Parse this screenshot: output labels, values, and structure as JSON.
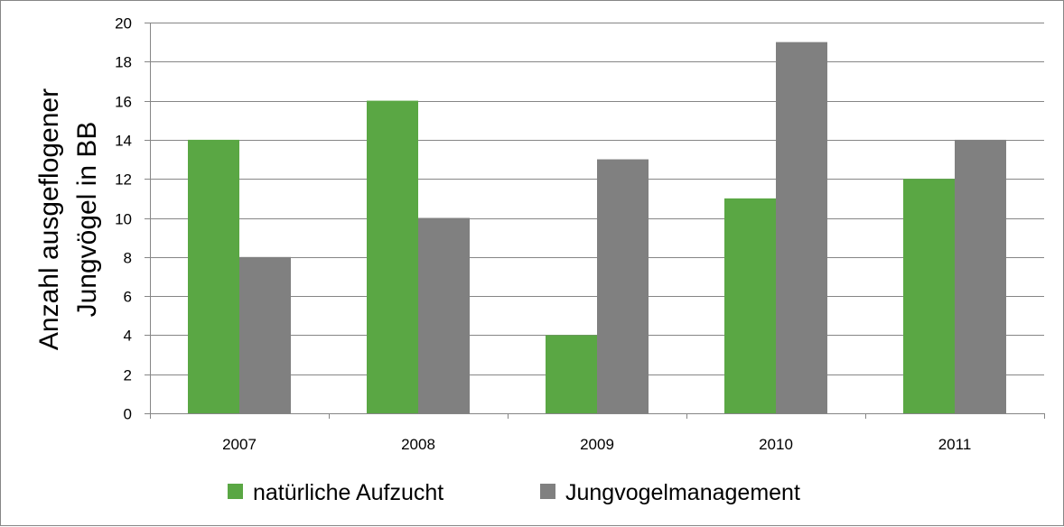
{
  "chart_data": {
    "type": "bar",
    "title": "",
    "xlabel": "",
    "ylabel_lines": [
      "Anzahl ausgeflogener",
      "Jungvögel in BB"
    ],
    "categories": [
      "2007",
      "2008",
      "2009",
      "2010",
      "2011"
    ],
    "series": [
      {
        "name": "natürliche Aufzucht",
        "color": "#5aa744",
        "values": [
          14,
          16,
          4,
          11,
          12
        ]
      },
      {
        "name": "Jungvogelmanagement",
        "color": "#808080",
        "values": [
          8,
          10,
          13,
          19,
          14
        ]
      }
    ],
    "ylim": [
      0,
      20
    ],
    "yticks": [
      0,
      2,
      4,
      6,
      8,
      10,
      12,
      14,
      16,
      18,
      20
    ],
    "grid": true,
    "legend": "bottom"
  }
}
